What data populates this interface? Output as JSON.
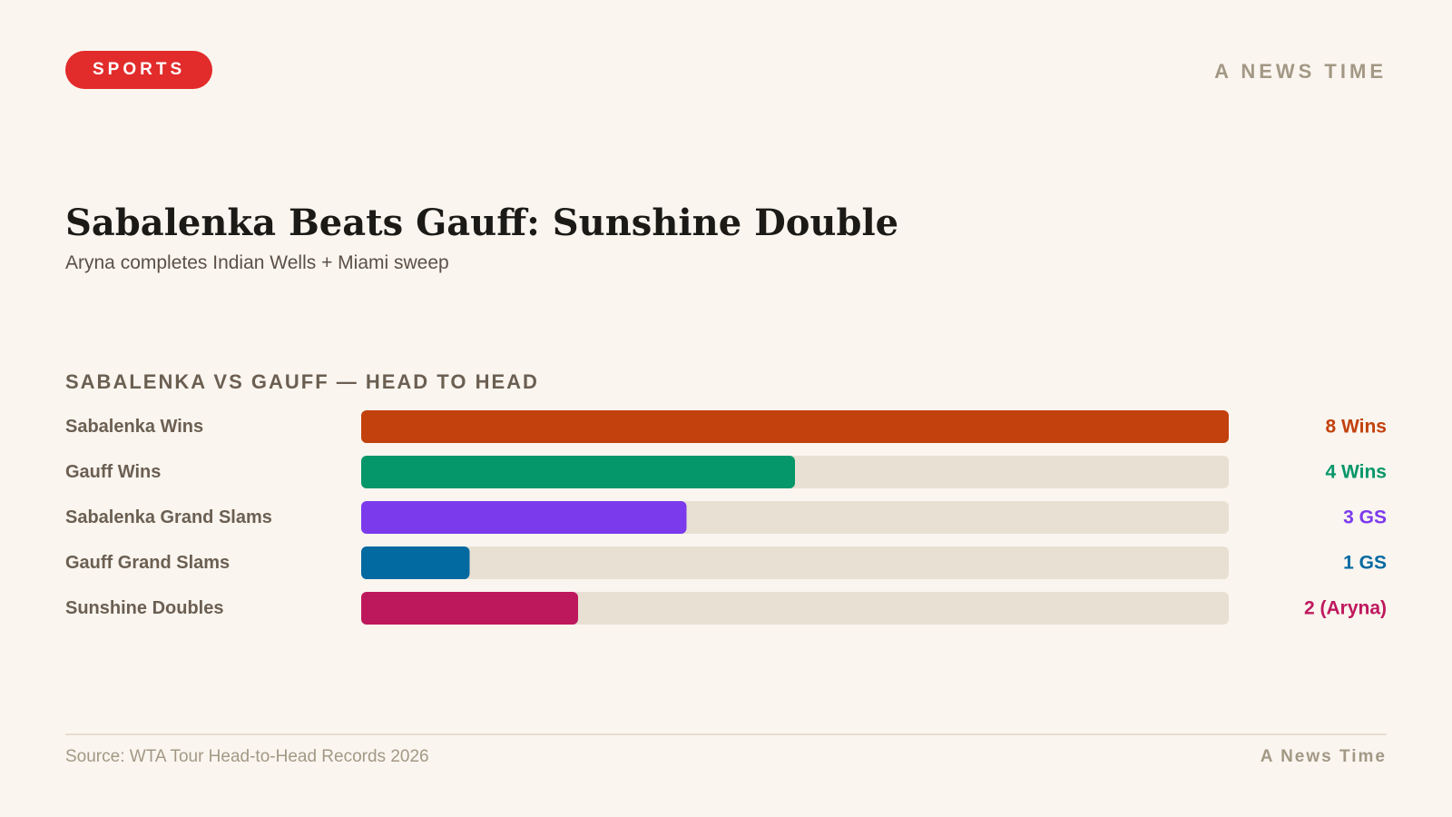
{
  "header": {
    "category_badge": "SPORTS",
    "brand": "A NEWS TIME"
  },
  "headline": {
    "title": "Sabalenka Beats Gauff: Sunshine Double",
    "subtitle": "Aryna completes Indian Wells + Miami sweep"
  },
  "colors": {
    "badge": "#e22b2b",
    "track": "#e8e0d2"
  },
  "chart_data": {
    "type": "bar",
    "orientation": "horizontal",
    "title": "SABALENKA VS GAUFF — HEAD TO HEAD",
    "xlim": [
      0,
      8
    ],
    "grid": false,
    "legend": "none",
    "rows": [
      {
        "label": "Sabalenka Wins",
        "value": 8,
        "value_label": "8 Wins",
        "color": "#c2410c"
      },
      {
        "label": "Gauff Wins",
        "value": 4,
        "value_label": "4 Wins",
        "color": "#059669"
      },
      {
        "label": "Sabalenka Grand Slams",
        "value": 3,
        "value_label": "3 GS",
        "color": "#7c3aed"
      },
      {
        "label": "Gauff Grand Slams",
        "value": 1,
        "value_label": "1 GS",
        "color": "#0369a1"
      },
      {
        "label": "Sunshine Doubles",
        "value": 2,
        "value_label": "2 (Aryna)",
        "color": "#be185d"
      }
    ]
  },
  "footer": {
    "source": "Source: WTA Tour Head-to-Head Records 2026",
    "brand": "A News Time"
  }
}
